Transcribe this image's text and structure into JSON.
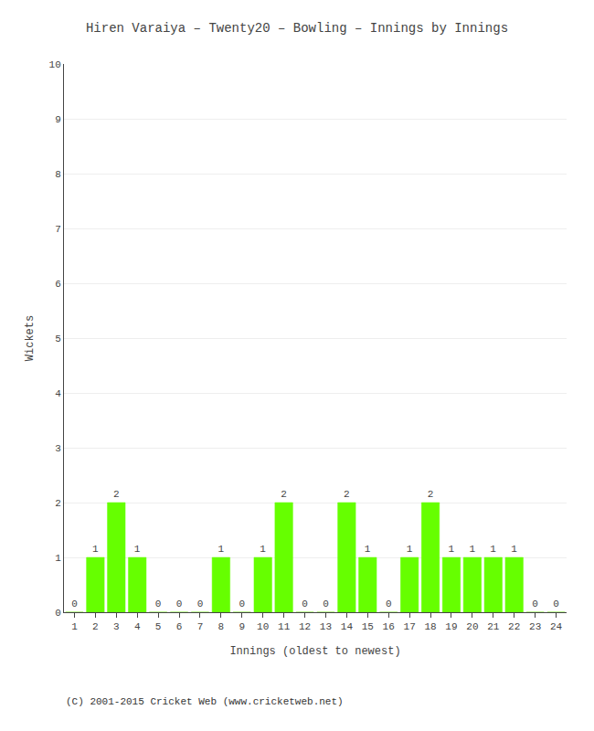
{
  "chart_data": {
    "type": "bar",
    "title": "Hiren Varaiya – Twenty20 – Bowling – Innings by Innings",
    "x_label": "Innings (oldest to newest)",
    "y_label": "Wickets",
    "annotations": [
      "(C) 2001-2015 Cricket Web (www.cricketweb.net)"
    ],
    "x": [
      1,
      2,
      3,
      4,
      5,
      6,
      7,
      8,
      9,
      10,
      11,
      12,
      13,
      14,
      15,
      16,
      17,
      18,
      19,
      20,
      21,
      22,
      23,
      24
    ],
    "values": [
      0,
      1,
      2,
      1,
      0,
      0,
      0,
      1,
      0,
      1,
      2,
      0,
      0,
      2,
      1,
      0,
      1,
      2,
      1,
      1,
      1,
      1,
      0,
      0
    ],
    "color": "#66ff00",
    "xlim": [
      0.5,
      24.5
    ],
    "xticks": [
      1,
      2,
      3,
      4,
      5,
      6,
      7,
      8,
      9,
      10,
      11,
      12,
      13,
      14,
      15,
      16,
      17,
      18,
      19,
      20,
      21,
      22,
      23,
      24
    ],
    "ylim": [
      0,
      10
    ],
    "yticks": [
      0,
      1,
      2,
      3,
      4,
      5,
      6,
      7,
      8,
      9,
      10
    ],
    "grid": true,
    "data_labels": true
  }
}
